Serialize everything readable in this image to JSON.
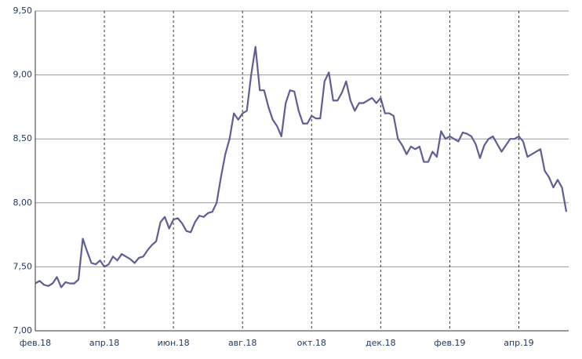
{
  "chart_data": {
    "type": "line",
    "categories": [
      "фев.18",
      null,
      null,
      null,
      null,
      null,
      null,
      null,
      null,
      null,
      null,
      null,
      null,
      null,
      null,
      null,
      "апр.18",
      null,
      null,
      null,
      null,
      null,
      null,
      null,
      null,
      null,
      null,
      null,
      null,
      null,
      null,
      null,
      "июн.18",
      null,
      null,
      null,
      null,
      null,
      null,
      null,
      null,
      null,
      null,
      null,
      null,
      null,
      null,
      null,
      "авг.18",
      null,
      null,
      null,
      null,
      null,
      null,
      null,
      null,
      null,
      null,
      null,
      null,
      null,
      null,
      null,
      "окт.18",
      null,
      null,
      null,
      null,
      null,
      null,
      null,
      null,
      null,
      null,
      null,
      null,
      null,
      null,
      null,
      "дек.18",
      null,
      null,
      null,
      null,
      null,
      null,
      null,
      null,
      null,
      null,
      null,
      null,
      null,
      null,
      null,
      "фев.19",
      null,
      null,
      null,
      null,
      null,
      null,
      null,
      null,
      null,
      null,
      null,
      null,
      null,
      null,
      null,
      "апр.19",
      null,
      null,
      null,
      null,
      null,
      null,
      null,
      null,
      null,
      null,
      null
    ],
    "series": [
      {
        "color": "#5e5e96",
        "values": [
          7.37,
          7.39,
          7.36,
          7.35,
          7.37,
          7.42,
          7.34,
          7.38,
          7.37,
          7.37,
          7.4,
          7.72,
          7.62,
          7.53,
          7.52,
          7.55,
          7.5,
          7.52,
          7.58,
          7.55,
          7.6,
          7.58,
          7.56,
          7.53,
          7.57,
          7.58,
          7.63,
          7.67,
          7.7,
          7.85,
          7.89,
          7.8,
          7.87,
          7.88,
          7.84,
          7.78,
          7.77,
          7.85,
          7.9,
          7.89,
          7.92,
          7.93,
          8.0,
          8.2,
          8.38,
          8.5,
          8.7,
          8.65,
          8.7,
          8.72,
          9.0,
          9.22,
          8.88,
          8.88,
          8.75,
          8.65,
          8.6,
          8.52,
          8.78,
          8.88,
          8.87,
          8.72,
          8.62,
          8.62,
          8.68,
          8.66,
          8.66,
          8.95,
          9.02,
          8.8,
          8.8,
          8.86,
          8.95,
          8.8,
          8.72,
          8.78,
          8.78,
          8.8,
          8.82,
          8.78,
          8.82,
          8.7,
          8.7,
          8.68,
          8.5,
          8.45,
          8.38,
          8.44,
          8.42,
          8.44,
          8.32,
          8.32,
          8.4,
          8.36,
          8.56,
          8.5,
          8.52,
          8.5,
          8.48,
          8.55,
          8.54,
          8.52,
          8.46,
          8.35,
          8.45,
          8.5,
          8.52,
          8.46,
          8.4,
          8.45,
          8.5,
          8.5,
          8.52,
          8.48,
          8.36,
          8.38,
          8.4,
          8.42,
          8.25,
          8.2,
          8.12,
          8.18,
          8.12,
          7.93
        ]
      }
    ],
    "ylim": [
      7,
      9.5
    ],
    "yticks": [
      {
        "value": 7,
        "label": "7,00"
      },
      {
        "value": 7.5,
        "label": "7,50"
      },
      {
        "value": 8,
        "label": "8,00"
      },
      {
        "value": 8.5,
        "label": "8,50"
      },
      {
        "value": 9,
        "label": "9,00"
      },
      {
        "value": 9.5,
        "label": "9,50"
      }
    ],
    "grid": true
  }
}
